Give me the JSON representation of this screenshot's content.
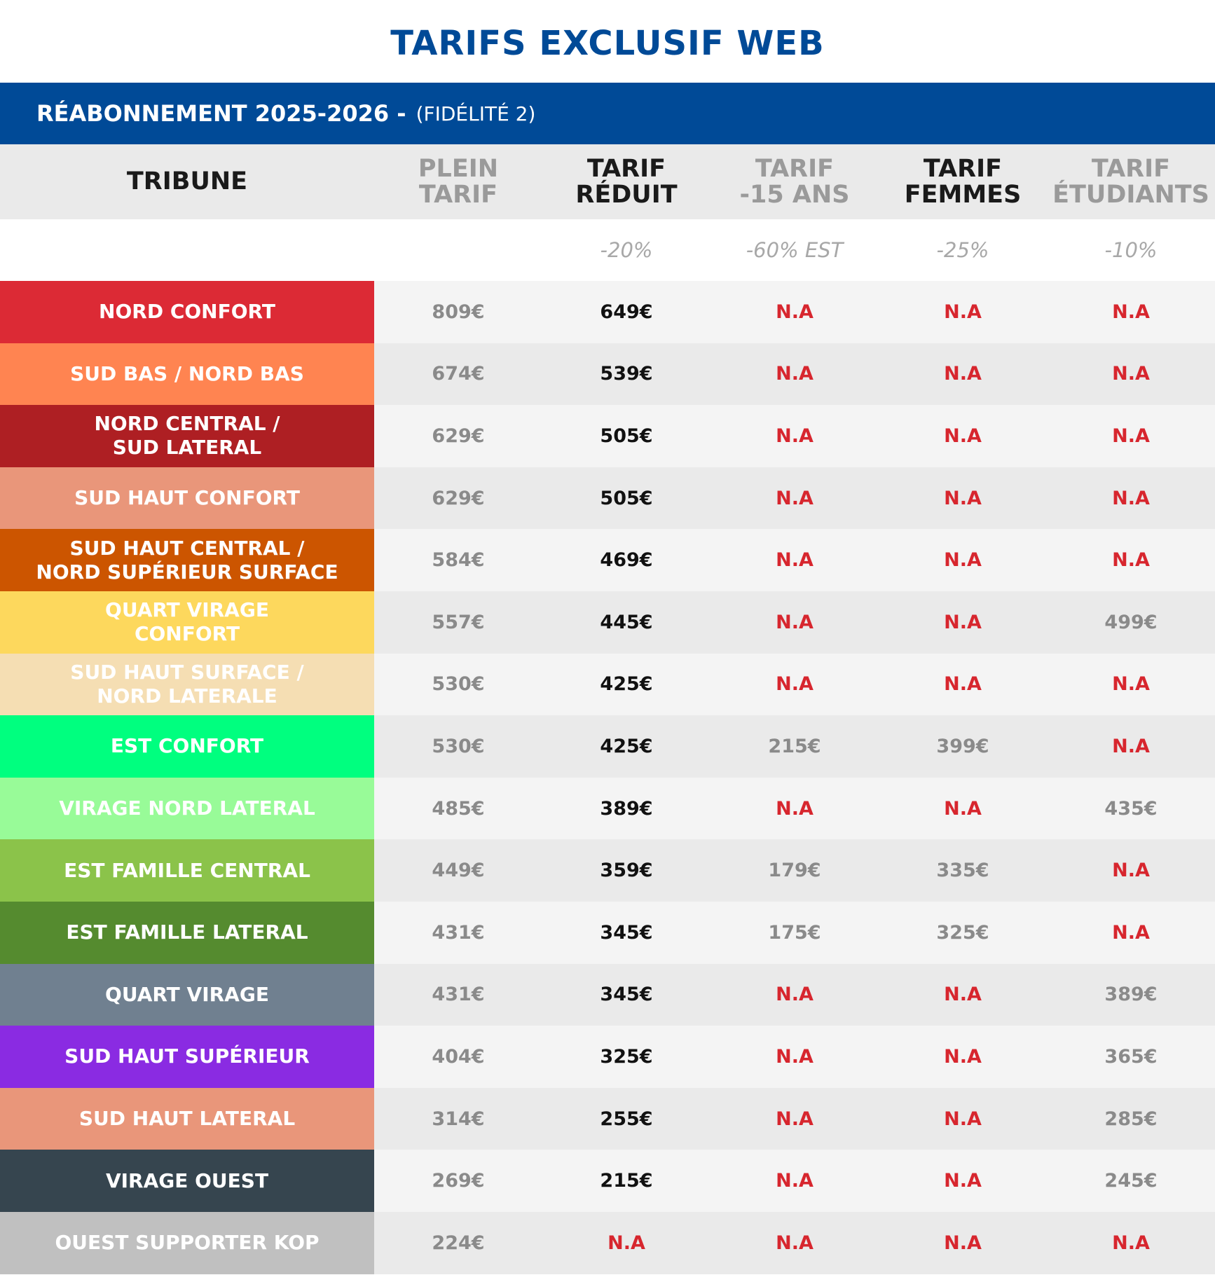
{
  "title": "TARIFS EXCLUSIF WEB",
  "banner": {
    "main": "RÉABONNEMENT 2025-2026 -",
    "sub": "(FIDÉLITÉ 2)"
  },
  "table": {
    "headers": [
      [
        "TRIBUNE"
      ],
      [
        "PLEIN",
        "TARIF"
      ],
      [
        "TARIF",
        "RÉDUIT"
      ],
      [
        "TARIF",
        "-15 ANS"
      ],
      [
        "TARIF",
        "FEMMES"
      ],
      [
        "TARIF",
        "ÉTUDIANTS"
      ]
    ],
    "discounts": [
      null,
      null,
      "-20%",
      "-60% EST",
      "-25%",
      "-10%"
    ],
    "rows": [
      {
        "tribune": [
          "NORD CONFORT"
        ],
        "prices": [
          "809€",
          "649€",
          "N.A",
          "N.A",
          "N.A"
        ]
      },
      {
        "tribune": [
          "SUD BAS / NORD BAS"
        ],
        "prices": [
          "674€",
          "539€",
          "N.A",
          "N.A",
          "N.A"
        ]
      },
      {
        "tribune": [
          "NORD CENTRAL /",
          "SUD LATERAL"
        ],
        "prices": [
          "629€",
          "505€",
          "N.A",
          "N.A",
          "N.A"
        ]
      },
      {
        "tribune": [
          "SUD HAUT CONFORT"
        ],
        "prices": [
          "629€",
          "505€",
          "N.A",
          "N.A",
          "N.A"
        ]
      },
      {
        "tribune": [
          "SUD HAUT CENTRAL /",
          "NORD SUPÉRIEUR SURFACE"
        ],
        "prices": [
          "584€",
          "469€",
          "N.A",
          "N.A",
          "N.A"
        ]
      },
      {
        "tribune": [
          "QUART VIRAGE",
          "CONFORT"
        ],
        "prices": [
          "557€",
          "445€",
          "N.A",
          "N.A",
          "499€"
        ]
      },
      {
        "tribune": [
          "SUD HAUT SURFACE /",
          "NORD LATERALE"
        ],
        "prices": [
          "530€",
          "425€",
          "N.A",
          "N.A",
          "N.A"
        ]
      },
      {
        "tribune": [
          "EST CONFORT"
        ],
        "prices": [
          "530€",
          "425€",
          "215€",
          "399€",
          "N.A"
        ]
      },
      {
        "tribune": [
          "VIRAGE NORD LATERAL"
        ],
        "prices": [
          "485€",
          "389€",
          "N.A",
          "N.A",
          "435€"
        ]
      },
      {
        "tribune": [
          "EST FAMILLE CENTRAL"
        ],
        "prices": [
          "449€",
          "359€",
          "179€",
          "335€",
          "N.A"
        ]
      },
      {
        "tribune": [
          "EST FAMILLE LATERAL"
        ],
        "prices": [
          "431€",
          "345€",
          "175€",
          "325€",
          "N.A"
        ]
      },
      {
        "tribune": [
          "QUART VIRAGE"
        ],
        "prices": [
          "431€",
          "345€",
          "N.A",
          "N.A",
          "389€"
        ]
      },
      {
        "tribune": [
          "SUD HAUT SUPÉRIEUR"
        ],
        "prices": [
          "404€",
          "325€",
          "N.A",
          "N.A",
          "365€"
        ]
      },
      {
        "tribune": [
          "SUD HAUT LATERAL"
        ],
        "prices": [
          "314€",
          "255€",
          "N.A",
          "N.A",
          "285€"
        ]
      },
      {
        "tribune": [
          "VIRAGE OUEST"
        ],
        "prices": [
          "269€",
          "215€",
          "N.A",
          "N.A",
          "245€"
        ]
      },
      {
        "tribune": [
          "OUEST SUPPORTER KOP"
        ],
        "prices": [
          "224€",
          "N.A",
          "N.A",
          "N.A",
          "N.A"
        ]
      }
    ]
  }
}
